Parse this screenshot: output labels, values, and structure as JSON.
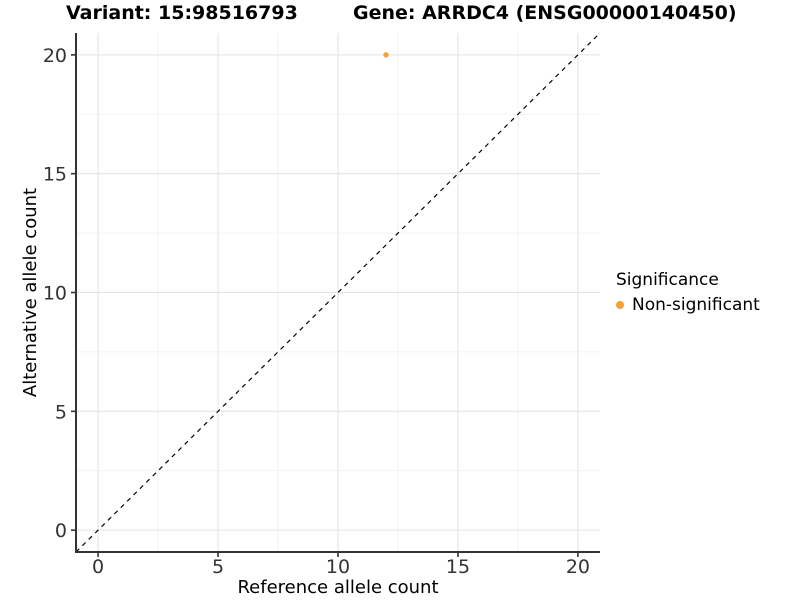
{
  "header": {
    "variant_title": "Variant: 15:98516793",
    "gene_title": "Gene: ARRDC4 (ENSG00000140450)"
  },
  "chart_data": {
    "type": "scatter",
    "titles": [
      "Variant: 15:98516793",
      "Gene: ARRDC4 (ENSG00000140450)"
    ],
    "xlabel": "Reference allele count",
    "ylabel": "Alternative allele count",
    "xlim": [
      -0.92,
      20.92
    ],
    "ylim": [
      -0.92,
      20.92
    ],
    "xticks": [
      0,
      5,
      10,
      15,
      20
    ],
    "yticks": [
      0,
      5,
      10,
      15,
      20
    ],
    "minor_gridlines": [
      2.5,
      7.5,
      12.5,
      17.5
    ],
    "grid": "major and minor, light gray on white panel",
    "identity_line": {
      "type": "y=x",
      "style": "dashed",
      "color": "#000000"
    },
    "series": [
      {
        "name": "Non-significant",
        "color": "#F8A032",
        "points": [
          {
            "x": 12,
            "y": 20
          }
        ]
      }
    ],
    "legend": {
      "title": "Significance",
      "position": "right",
      "items": [
        {
          "label": "Non-significant",
          "color": "#F8A032"
        }
      ]
    }
  },
  "colors": {
    "point": "#F8A032",
    "grid_major": "#E4E4E4",
    "grid_minor": "#EFEFEF",
    "axis_line": "#333333",
    "tick_label": "#333333",
    "axis_title": "#000000",
    "background": "#FFFFFF"
  }
}
